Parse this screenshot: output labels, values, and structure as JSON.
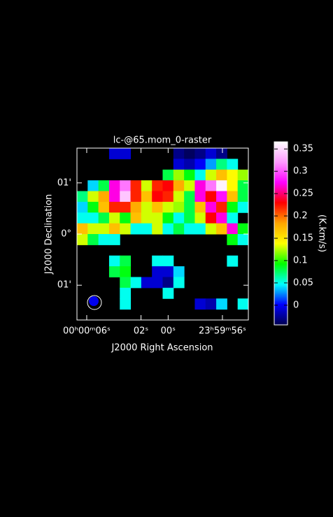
{
  "chart_data": {
    "type": "raster",
    "title": "lc-@65.mom_0-raster",
    "x_label": "J2000 Right Ascension",
    "y_label": "J2000 Declination",
    "colorbar_label": "(K.km/s)",
    "xlim": [
      6.72,
      -5.91
    ],
    "ylim": [
      -1.68,
      1.68
    ],
    "xticks": [
      {
        "value": 6,
        "label": "00ʰ00ᵐ06ˢ"
      },
      {
        "value": 2,
        "label": "02ˢ"
      },
      {
        "value": 0,
        "label": "00ˢ"
      },
      {
        "value": -4,
        "label": "23ʰ59ᵐ56ˢ"
      }
    ],
    "yticks": [
      {
        "value": 1,
        "label": "01'"
      },
      {
        "value": 0,
        "label": "0°"
      },
      {
        "value": -1,
        "label": "01'"
      }
    ],
    "zlim": [
      -0.044,
      0.366
    ],
    "zticks": [
      0,
      0.05,
      0.1,
      0.15,
      0.2,
      0.25,
      0.3,
      0.35
    ],
    "colors": [
      "#000050",
      "#0000ff",
      "#00ffff",
      "#00ff00",
      "#ffff00",
      "#ffa500",
      "#ff0000",
      "#ff00ff",
      "#ff99ff",
      "#ffffff"
    ],
    "z": [
      [
        null,
        null,
        null,
        -0.01,
        -0.01,
        null,
        null,
        null,
        null,
        -0.03,
        -0.04,
        -0.03,
        -0.01,
        -0.03,
        null,
        null
      ],
      [
        null,
        null,
        null,
        null,
        null,
        null,
        null,
        null,
        null,
        -0.01,
        -0.02,
        0.0,
        0.03,
        0.07,
        0.05,
        null
      ],
      [
        null,
        null,
        null,
        null,
        null,
        null,
        null,
        null,
        0.08,
        0.12,
        0.09,
        0.05,
        0.13,
        0.17,
        0.14,
        0.12
      ],
      [
        null,
        0.04,
        0.08,
        0.27,
        0.31,
        0.22,
        0.13,
        0.22,
        0.23,
        0.18,
        0.13,
        0.27,
        0.31,
        0.36,
        0.14,
        0.08
      ],
      [
        0.07,
        0.13,
        0.18,
        0.27,
        0.34,
        0.22,
        0.17,
        0.23,
        0.22,
        0.13,
        0.08,
        0.27,
        0.23,
        0.28,
        0.17,
        0.08
      ],
      [
        0.04,
        0.09,
        0.17,
        0.22,
        0.22,
        0.18,
        0.13,
        0.17,
        0.13,
        0.12,
        0.08,
        0.17,
        0.27,
        0.22,
        0.09,
        0.05
      ],
      [
        0.05,
        0.05,
        0.08,
        0.13,
        0.09,
        0.17,
        0.13,
        0.13,
        0.09,
        0.05,
        0.08,
        0.13,
        0.23,
        0.27,
        0.05,
        null
      ],
      [
        0.17,
        0.13,
        0.13,
        0.17,
        0.13,
        0.05,
        0.05,
        0.13,
        0.05,
        0.08,
        0.05,
        0.05,
        0.13,
        0.17,
        0.27,
        0.09
      ],
      [
        0.13,
        0.08,
        0.05,
        0.05,
        null,
        null,
        null,
        null,
        null,
        null,
        null,
        null,
        null,
        null,
        0.09,
        0.05
      ],
      [
        null,
        null,
        null,
        null,
        null,
        null,
        null,
        null,
        null,
        null,
        null,
        null,
        null,
        null,
        null,
        null
      ],
      [
        null,
        null,
        null,
        0.05,
        0.08,
        null,
        null,
        0.05,
        0.05,
        null,
        null,
        null,
        null,
        null,
        0.05,
        null
      ],
      [
        null,
        null,
        null,
        0.08,
        0.09,
        null,
        null,
        -0.01,
        -0.01,
        0.04,
        null,
        null,
        null,
        null,
        null,
        null
      ],
      [
        null,
        null,
        null,
        null,
        0.08,
        0.05,
        -0.01,
        -0.01,
        -0.03,
        0.05,
        null,
        null,
        null,
        null,
        null,
        null
      ],
      [
        null,
        null,
        null,
        null,
        0.05,
        null,
        null,
        null,
        0.05,
        null,
        null,
        null,
        null,
        null,
        null,
        null
      ],
      [
        null,
        null,
        null,
        null,
        0.05,
        null,
        null,
        null,
        null,
        null,
        null,
        -0.01,
        -0.02,
        0.04,
        null,
        0.05
      ],
      [
        null,
        null,
        null,
        null,
        null,
        null,
        null,
        null,
        null,
        null,
        null,
        null,
        null,
        null,
        null,
        null
      ]
    ]
  }
}
